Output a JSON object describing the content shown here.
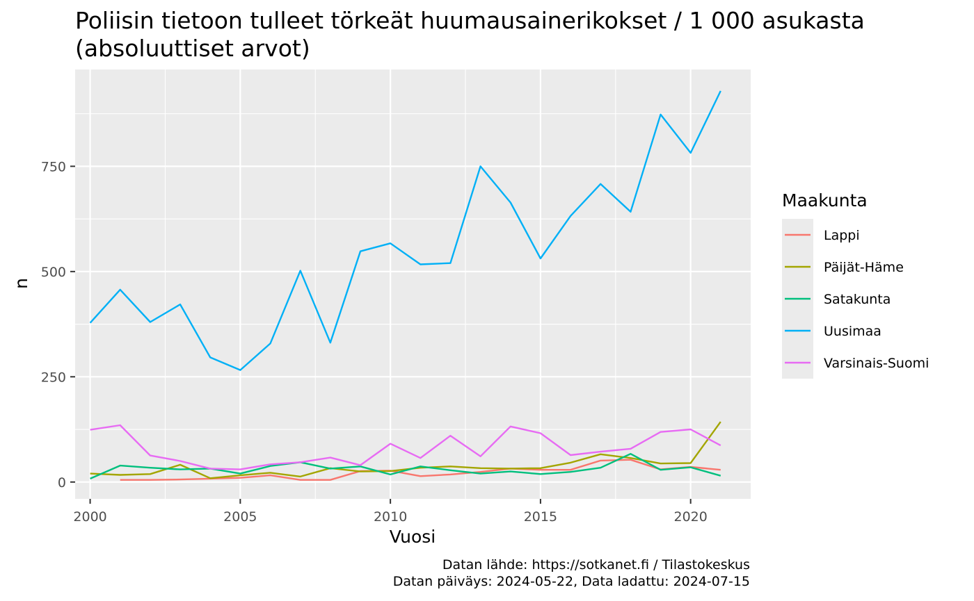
{
  "chart_data": {
    "type": "line",
    "title_line1": "Poliisin tietoon tulleet törkeät huumausainerikokset / 1 000 asukasta",
    "title_line2": "(absoluuttiset arvot)",
    "xlabel": "Vuosi",
    "ylabel": "n",
    "xlim": [
      1999.5,
      2022.0
    ],
    "ylim": [
      -40,
      980
    ],
    "x_ticks": [
      2000,
      2005,
      2010,
      2015,
      2020
    ],
    "y_ticks": [
      0,
      250,
      500,
      750
    ],
    "grid": true,
    "legend_title": "Maakunta",
    "legend_position": "right",
    "caption_line1": "Datan lähde: https://sotkanet.fi / Tilastokeskus",
    "caption_line2": "Datan päiväys: 2024-05-22, Data ladattu: 2024-07-15",
    "series": [
      {
        "name": "Lappi",
        "color": "#F8766D",
        "x": [
          2001,
          2002,
          2003,
          2004,
          2005,
          2006,
          2007,
          2008,
          2009,
          2010,
          2011,
          2012,
          2013,
          2014,
          2015,
          2016,
          2017,
          2018,
          2019,
          2020,
          2021
        ],
        "values": [
          5,
          5,
          6,
          8,
          10,
          16,
          5,
          5,
          26,
          27,
          14,
          18,
          24,
          32,
          29,
          29,
          51,
          53,
          30,
          36,
          29
        ]
      },
      {
        "name": "Päijät-Häme",
        "color": "#A3A500",
        "x": [
          2000,
          2001,
          2002,
          2003,
          2004,
          2005,
          2006,
          2007,
          2008,
          2009,
          2010,
          2011,
          2012,
          2013,
          2014,
          2015,
          2016,
          2017,
          2018,
          2019,
          2020,
          2021
        ],
        "values": [
          20,
          17,
          19,
          41,
          9,
          16,
          22,
          13,
          33,
          25,
          26,
          34,
          37,
          33,
          32,
          33,
          46,
          66,
          57,
          44,
          45,
          143
        ]
      },
      {
        "name": "Satakunta",
        "color": "#00BF7D",
        "x": [
          2000,
          2001,
          2002,
          2003,
          2004,
          2005,
          2006,
          2007,
          2008,
          2009,
          2010,
          2011,
          2012,
          2013,
          2014,
          2015,
          2016,
          2017,
          2018,
          2019,
          2020,
          2021
        ],
        "values": [
          8,
          39,
          34,
          30,
          32,
          20,
          38,
          47,
          32,
          37,
          18,
          37,
          28,
          20,
          25,
          19,
          24,
          34,
          67,
          29,
          35,
          15
        ]
      },
      {
        "name": "Uusimaa",
        "color": "#00B0F6",
        "x": [
          2000,
          2001,
          2002,
          2003,
          2004,
          2005,
          2006,
          2007,
          2008,
          2009,
          2010,
          2011,
          2012,
          2013,
          2014,
          2015,
          2016,
          2017,
          2018,
          2019,
          2020,
          2021
        ],
        "values": [
          378,
          457,
          380,
          422,
          296,
          266,
          329,
          502,
          331,
          548,
          567,
          517,
          520,
          750,
          664,
          531,
          632,
          708,
          642,
          873,
          782,
          929
        ]
      },
      {
        "name": "Varsinais-Suomi",
        "color": "#E76BF3",
        "x": [
          2000,
          2001,
          2002,
          2003,
          2004,
          2005,
          2006,
          2007,
          2008,
          2009,
          2010,
          2011,
          2012,
          2013,
          2014,
          2015,
          2016,
          2017,
          2018,
          2019,
          2020,
          2021
        ],
        "values": [
          124,
          135,
          63,
          50,
          32,
          30,
          42,
          47,
          58,
          40,
          91,
          57,
          110,
          61,
          132,
          116,
          64,
          72,
          79,
          119,
          125,
          87
        ]
      }
    ]
  }
}
